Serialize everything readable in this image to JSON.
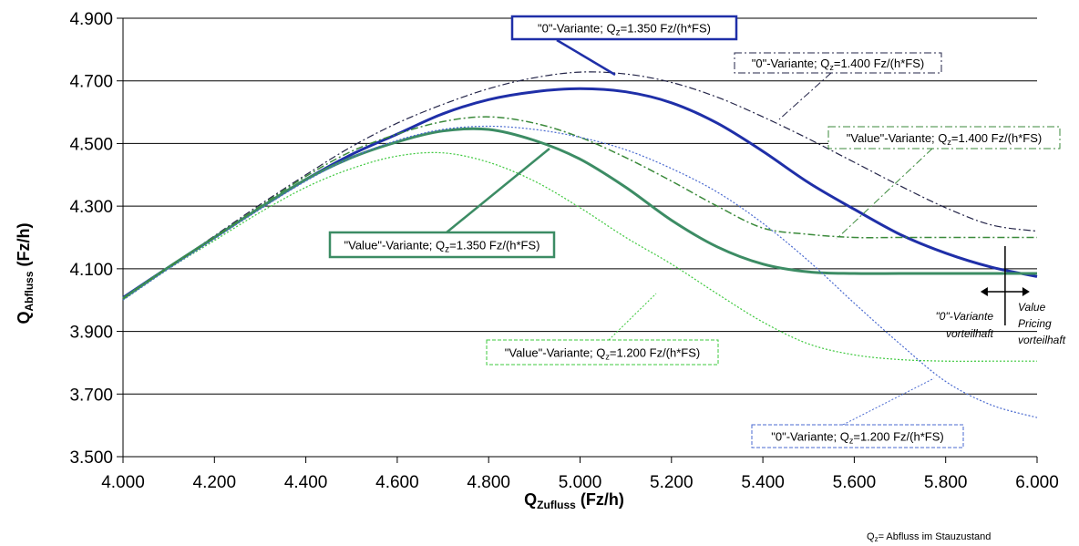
{
  "chart_data": {
    "type": "line",
    "xlabel_main": "Q",
    "xlabel_sub": "Zufluss",
    "xlabel_unit": " (Fz/h)",
    "ylabel_main": "Q",
    "ylabel_sub": "Abfluss",
    "ylabel_unit": " (Fz/h)",
    "xlim": [
      4000,
      6000
    ],
    "ylim": [
      3500,
      4900
    ],
    "x_ticks": [
      4000,
      4200,
      4400,
      4600,
      4800,
      5000,
      5200,
      5400,
      5600,
      5800,
      6000
    ],
    "x_tick_labels": [
      "4.000",
      "4.200",
      "4.400",
      "4.600",
      "4.800",
      "5.000",
      "5.200",
      "5.400",
      "5.600",
      "5.800",
      "6.000"
    ],
    "y_ticks": [
      3500,
      3700,
      3900,
      4100,
      4300,
      4500,
      4700,
      4900
    ],
    "y_tick_labels": [
      "3.500",
      "3.700",
      "3.900",
      "4.100",
      "4.300",
      "4.500",
      "4.700",
      "4.900"
    ],
    "grid": "horizontal",
    "x": [
      4000,
      4100,
      4200,
      4300,
      4400,
      4500,
      4600,
      4700,
      4800,
      4900,
      5000,
      5100,
      5200,
      5300,
      5400,
      5500,
      5600,
      5700,
      5800,
      5900,
      6000
    ],
    "series": [
      {
        "label_pre": "\"0\"-Variante; Q",
        "label_sub": "z",
        "label_post": "=1.350 Fz/(h*FS)",
        "color": "#1f2fa8",
        "style": "solid",
        "width": 3,
        "box_style": "solid",
        "values": [
          4008,
          4105,
          4200,
          4295,
          4385,
          4465,
          4530,
          4595,
          4640,
          4665,
          4675,
          4665,
          4630,
          4565,
          4475,
          4375,
          4290,
          4210,
          4150,
          4105,
          4075
        ]
      },
      {
        "label_pre": "\"0\"-Variante; Q",
        "label_sub": "z",
        "label_post": "=1.400 Fz/(h*FS)",
        "color": "#232448",
        "style": "dashdot",
        "width": 1.2,
        "box_style": "dashdot",
        "values": [
          4008,
          4105,
          4205,
          4305,
          4400,
          4490,
          4565,
          4625,
          4675,
          4710,
          4728,
          4722,
          4695,
          4648,
          4585,
          4515,
          4440,
          4365,
          4295,
          4240,
          4220
        ]
      },
      {
        "label_pre": "\"Value\"-Variante; Q",
        "label_sub": "z",
        "label_post": "=1.350 Fz/(h*FS)",
        "color": "#3c8c64",
        "style": "solid",
        "width": 3,
        "box_style": "solid",
        "values": [
          4005,
          4105,
          4200,
          4295,
          4385,
          4455,
          4505,
          4540,
          4545,
          4510,
          4450,
          4360,
          4255,
          4170,
          4115,
          4090,
          4085,
          4085,
          4085,
          4085,
          4085
        ]
      },
      {
        "label_pre": "\"Value\"-Variante; Q",
        "label_sub": "z",
        "label_post": "=1.400 Fz/(h*FS)",
        "color": "#3b8a3b",
        "style": "dashdot",
        "width": 1.5,
        "box_style": "dashdot",
        "values": [
          4005,
          4105,
          4200,
          4300,
          4395,
          4475,
          4530,
          4570,
          4585,
          4565,
          4520,
          4455,
          4380,
          4300,
          4230,
          4210,
          4200,
          4200,
          4200,
          4200,
          4200
        ]
      },
      {
        "label_pre": "\"Value\"-Variante; Q",
        "label_sub": "z",
        "label_post": "=1.200 Fz/(h*FS)",
        "color": "#3cc83c",
        "style": "dotted",
        "width": 1.2,
        "box_style": "dashed",
        "values": [
          4000,
          4100,
          4190,
          4280,
          4360,
          4420,
          4460,
          4470,
          4440,
          4380,
          4295,
          4200,
          4115,
          4020,
          3930,
          3860,
          3825,
          3810,
          3805,
          3805,
          3805
        ]
      },
      {
        "label_pre": "\"0\"-Variante; Q",
        "label_sub": "z",
        "label_post": "=1.200 Fz/(h*FS)",
        "color": "#4a6ad0",
        "style": "dotted",
        "width": 1.2,
        "box_style": "dashed",
        "values": [
          4000,
          4100,
          4195,
          4290,
          4380,
          4455,
          4510,
          4545,
          4555,
          4545,
          4520,
          4480,
          4420,
          4345,
          4245,
          4125,
          3990,
          3860,
          3740,
          3665,
          3625
        ]
      }
    ],
    "annotations": {
      "left_side_line1": "\"0\"-Variante",
      "left_side_line2": "vorteilhaft",
      "right_side_line1": "Value",
      "right_side_line2": "Pricing",
      "right_side_line3": "vorteilhaft",
      "crossover_x": 5930,
      "footnote_pre": "Q",
      "footnote_sub": "z",
      "footnote_post": "= Abfluss im Stauzustand"
    }
  }
}
